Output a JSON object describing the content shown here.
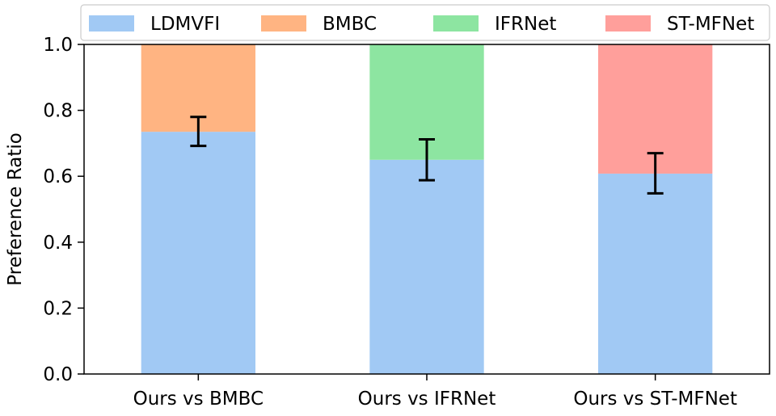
{
  "chart_data": {
    "type": "bar",
    "stacked": true,
    "categories": [
      "Ours vs BMBC",
      "Ours vs IFRNet",
      "Ours vs ST-MFNet"
    ],
    "ylabel": "Preference Ratio",
    "xlabel": "",
    "title": "",
    "ylim": [
      0,
      1.0
    ],
    "yticks": [
      "0.0",
      "0.2",
      "0.4",
      "0.6",
      "0.8",
      "1.0"
    ],
    "ytick_values": [
      0.0,
      0.2,
      0.4,
      0.6,
      0.8,
      1.0
    ],
    "grid": false,
    "legend_position": "top",
    "legend": [
      {
        "label": "LDMVFI",
        "color": "#a1c9f4"
      },
      {
        "label": "BMBC",
        "color": "#ffb482"
      },
      {
        "label": "IFRNet",
        "color": "#8de5a1"
      },
      {
        "label": "ST-MFNet",
        "color": "#ff9f9b"
      }
    ],
    "bars": [
      {
        "category": "Ours vs BMBC",
        "bottom_series": "LDMVFI",
        "bottom_value": 0.735,
        "bottom_color": "#a1c9f4",
        "top_series": "BMBC",
        "top_value": 0.265,
        "top_color": "#ffb482",
        "error_low": 0.692,
        "error_high": 0.78
      },
      {
        "category": "Ours vs IFRNet",
        "bottom_series": "LDMVFI",
        "bottom_value": 0.65,
        "bottom_color": "#a1c9f4",
        "top_series": "IFRNet",
        "top_value": 0.35,
        "top_color": "#8de5a1",
        "error_low": 0.588,
        "error_high": 0.712
      },
      {
        "category": "Ours vs ST-MFNet",
        "bottom_series": "LDMVFI",
        "bottom_value": 0.608,
        "bottom_color": "#a1c9f4",
        "top_series": "ST-MFNet",
        "top_value": 0.392,
        "top_color": "#ff9f9b",
        "error_low": 0.548,
        "error_high": 0.67
      }
    ]
  }
}
